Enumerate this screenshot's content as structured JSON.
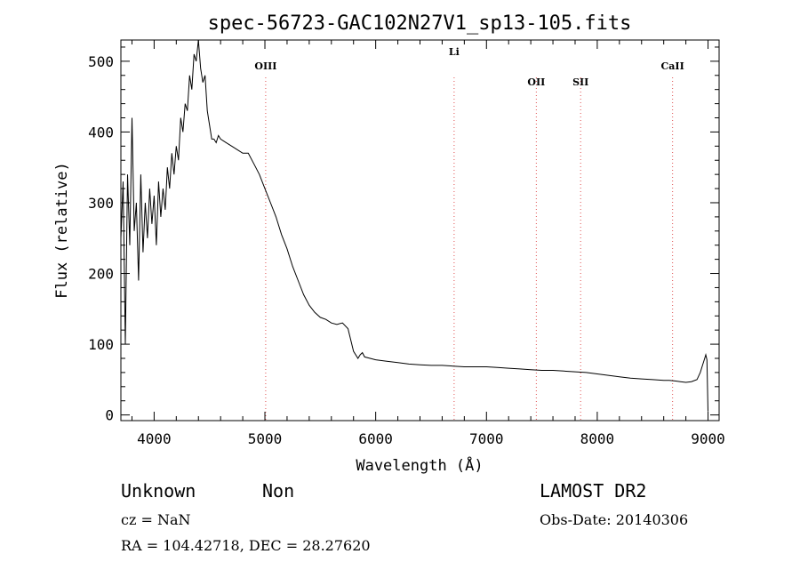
{
  "chart_data": {
    "type": "line",
    "title": "spec-56723-GAC102N27V1_sp13-105.fits",
    "xlabel": "Wavelength (Å)",
    "ylabel": "Flux (relative)",
    "xlim": [
      3700,
      9100
    ],
    "ylim": [
      -8,
      530
    ],
    "xticks": [
      4000,
      5000,
      6000,
      7000,
      8000,
      9000
    ],
    "yticks": [
      0,
      100,
      200,
      300,
      400,
      500
    ],
    "grid": false,
    "lines": [
      {
        "label": "OIII",
        "x": 5007
      },
      {
        "label": "Li",
        "x": 6708
      },
      {
        "label": "OII",
        "x": 7450
      },
      {
        "label": "SII",
        "x": 7850
      },
      {
        "label": "CaII",
        "x": 8680
      }
    ],
    "series": [
      {
        "x": [
          3700,
          3720,
          3740,
          3760,
          3780,
          3800,
          3820,
          3840,
          3860,
          3880,
          3900,
          3920,
          3940,
          3960,
          3980,
          4000,
          4020,
          4040,
          4060,
          4080,
          4100,
          4120,
          4140,
          4160,
          4180,
          4200,
          4220,
          4240,
          4260,
          4280,
          4300,
          4320,
          4340,
          4360,
          4380,
          4400,
          4420,
          4440,
          4460,
          4480,
          4500,
          4520,
          4540,
          4560,
          4580,
          4600,
          4650,
          4700,
          4750,
          4800,
          4850,
          4900,
          4950,
          5000,
          5050,
          5100,
          5150,
          5200,
          5250,
          5300,
          5350,
          5400,
          5450,
          5500,
          5550,
          5600,
          5650,
          5700,
          5750,
          5800,
          5840,
          5860,
          5880,
          5900,
          5950,
          6000,
          6100,
          6200,
          6300,
          6400,
          6500,
          6600,
          6700,
          6800,
          6900,
          7000,
          7100,
          7200,
          7300,
          7400,
          7500,
          7600,
          7700,
          7800,
          7900,
          8000,
          8100,
          8200,
          8300,
          8400,
          8500,
          8600,
          8650,
          8700,
          8750,
          8800,
          8850,
          8900,
          8930,
          8950,
          8970,
          8980,
          8990,
          9000
        ],
        "y": [
          250,
          330,
          100,
          340,
          240,
          420,
          260,
          300,
          190,
          340,
          230,
          300,
          250,
          320,
          270,
          310,
          240,
          330,
          280,
          320,
          290,
          350,
          320,
          370,
          340,
          380,
          360,
          420,
          400,
          440,
          430,
          480,
          460,
          510,
          500,
          530,
          490,
          470,
          480,
          430,
          410,
          390,
          390,
          385,
          395,
          390,
          385,
          380,
          375,
          370,
          370,
          355,
          340,
          320,
          300,
          280,
          255,
          235,
          210,
          190,
          170,
          155,
          145,
          138,
          135,
          130,
          128,
          130,
          122,
          90,
          80,
          85,
          88,
          82,
          80,
          78,
          76,
          74,
          72,
          71,
          70,
          70,
          69,
          68,
          68,
          68,
          67,
          66,
          65,
          64,
          63,
          63,
          62,
          61,
          60,
          58,
          56,
          54,
          52,
          51,
          50,
          49,
          49,
          48,
          47,
          46,
          47,
          50,
          60,
          70,
          80,
          85,
          78,
          5
        ]
      }
    ]
  },
  "info": {
    "class": "Unknown",
    "subclass": "Non",
    "survey": "LAMOST DR2",
    "cz": "cz = NaN",
    "obs_date": "Obs-Date: 20140306",
    "coords": "RA = 104.42718, DEC =  28.27620"
  }
}
